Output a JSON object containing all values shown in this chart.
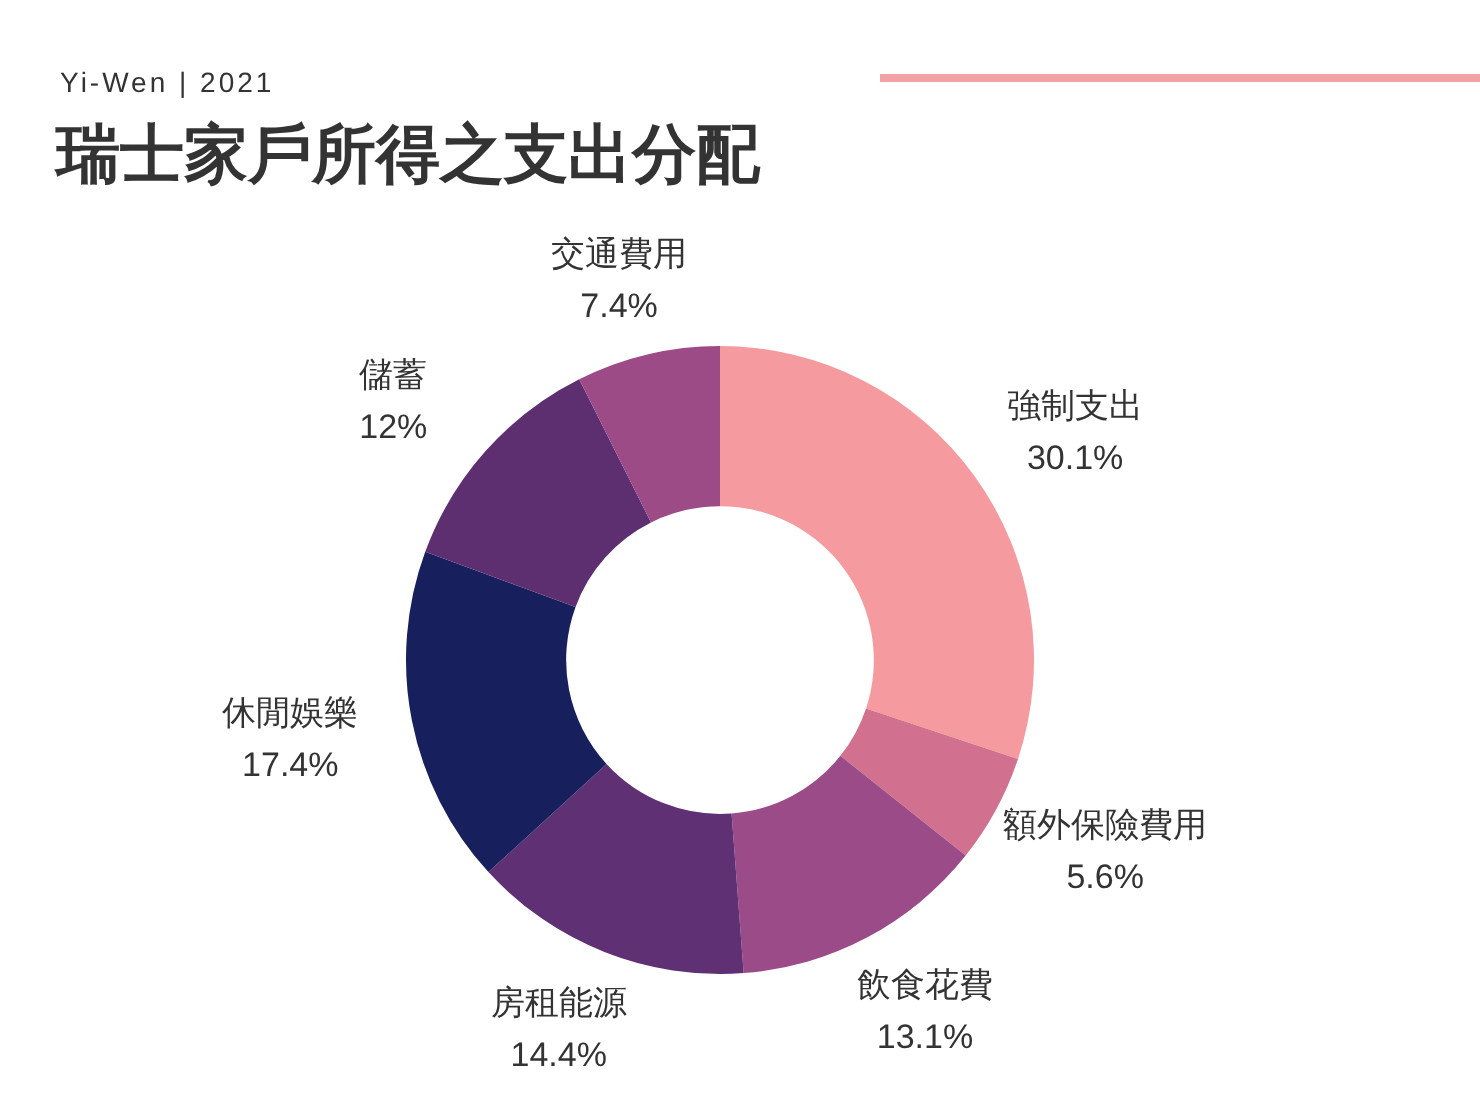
{
  "chart_data": {
    "type": "donut",
    "title": "瑞士家戶所得之支出分配",
    "subtitle": "Yi-Wen | 2021",
    "categories": [
      "強制支出",
      "額外保險費用",
      "飲食花費",
      "房租能源",
      "休閒娛樂",
      "儲蓄",
      "交通費用"
    ],
    "values": [
      30.1,
      5.6,
      13.1,
      14.4,
      17.4,
      12,
      7.4
    ],
    "colors": [
      "#f59a9f",
      "#d2708f",
      "#9b4b87",
      "#5f3073",
      "#17205d",
      "#5d2f71",
      "#9c4b87"
    ],
    "value_labels": [
      "30.1%",
      "5.6%",
      "13.1%",
      "14.4%",
      "17.4%",
      "12%",
      "7.4%"
    ]
  }
}
